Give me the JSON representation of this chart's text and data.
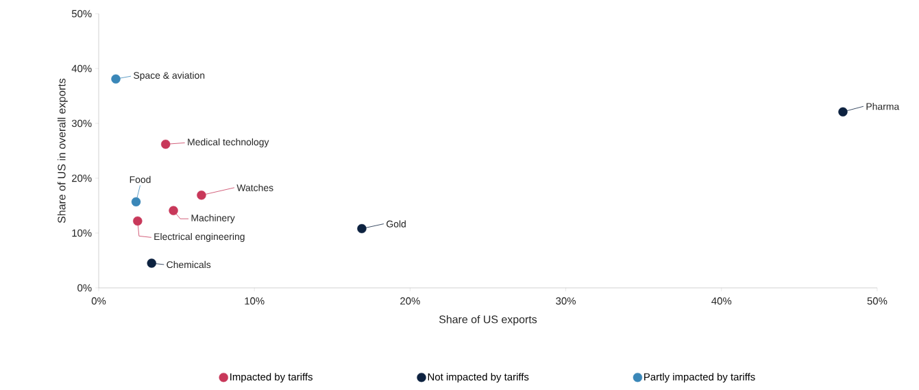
{
  "chart_data": {
    "type": "scatter",
    "xlabel": "Share of US exports",
    "ylabel": "Share of US in overall exports",
    "xlim": [
      0,
      50
    ],
    "ylim": [
      0,
      50
    ],
    "xticks": [
      {
        "value": 0,
        "label": "0%"
      },
      {
        "value": 10,
        "label": "10%"
      },
      {
        "value": 20,
        "label": "20%"
      },
      {
        "value": 30,
        "label": "30%"
      },
      {
        "value": 40,
        "label": "40%"
      },
      {
        "value": 50,
        "label": "50%"
      }
    ],
    "yticks": [
      {
        "value": 0,
        "label": "0%"
      },
      {
        "value": 10,
        "label": "10%"
      },
      {
        "value": 20,
        "label": "20%"
      },
      {
        "value": 30,
        "label": "30%"
      },
      {
        "value": 40,
        "label": "40%"
      },
      {
        "value": 50,
        "label": "50%"
      }
    ],
    "series": [
      {
        "name": "Impacted by tariffs",
        "color": "#c8385a",
        "x": [
          4.3,
          6.6,
          4.8,
          2.5
        ],
        "values": [
          26.2,
          16.9,
          14.1,
          12.2
        ]
      },
      {
        "name": "Not impacted by tariffs",
        "color": "#0d2240",
        "x": [
          47.8,
          16.9,
          3.4
        ],
        "values": [
          32.1,
          10.8,
          4.5
        ]
      },
      {
        "name": "Partly impacted by tariffs",
        "color": "#3a87b8",
        "x": [
          1.1,
          2.4
        ],
        "values": [
          38.1,
          15.7
        ]
      }
    ],
    "annotations": [
      {
        "text": "Space & aviation",
        "x": 1.1,
        "y": 38.1
      },
      {
        "text": "Pharma",
        "x": 47.8,
        "y": 32.1
      },
      {
        "text": "Medical technology",
        "x": 4.3,
        "y": 26.2
      },
      {
        "text": "Food",
        "x": 2.4,
        "y": 15.7
      },
      {
        "text": "Watches",
        "x": 6.6,
        "y": 16.9
      },
      {
        "text": "Machinery",
        "x": 4.8,
        "y": 14.1
      },
      {
        "text": "Gold",
        "x": 16.9,
        "y": 10.8
      },
      {
        "text": "Electrical engineering",
        "x": 2.5,
        "y": 12.2
      },
      {
        "text": "Chemicals",
        "x": 3.4,
        "y": 4.5
      }
    ],
    "marker": "circle",
    "grid": false,
    "legend": "bottom"
  }
}
